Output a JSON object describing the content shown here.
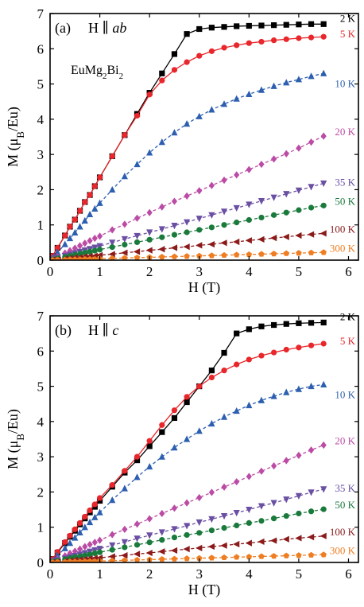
{
  "chart_data": [
    {
      "type": "scatter",
      "panel_label": "(a)",
      "field_prefix": "H ∥ ",
      "field_dir": "ab",
      "compound": {
        "base": "EuMg",
        "sub1": "2",
        "mid": "Bi",
        "sub2": "2"
      },
      "xlabel": "H (T)",
      "ylabel": {
        "pre": "M (μ",
        "sub": "B",
        "post": "/Eu)"
      },
      "xlim": [
        0,
        6.2
      ],
      "ylim": [
        0,
        7
      ],
      "xticks": [
        0,
        1,
        2,
        3,
        4,
        5,
        6
      ],
      "yticks": [
        0,
        1,
        2,
        3,
        4,
        5,
        6,
        7
      ],
      "grid": false,
      "legend_placement": "inline labels at right end of curves",
      "series": [
        {
          "name": "2 K",
          "color": "#000000",
          "marker": "square",
          "x": [
            0.05,
            0.15,
            0.3,
            0.4,
            0.5,
            0.6,
            0.7,
            0.8,
            0.9,
            1.0,
            1.25,
            1.5,
            1.75,
            2.0,
            2.25,
            2.5,
            2.75,
            3.0,
            3.25,
            3.5,
            3.75,
            4.0,
            4.25,
            4.5,
            4.75,
            5.0,
            5.25,
            5.5
          ],
          "y": [
            0.12,
            0.35,
            0.7,
            0.95,
            1.15,
            1.4,
            1.65,
            1.85,
            2.1,
            2.35,
            2.95,
            3.55,
            4.15,
            4.75,
            5.3,
            5.85,
            6.42,
            6.56,
            6.6,
            6.62,
            6.64,
            6.65,
            6.66,
            6.67,
            6.68,
            6.69,
            6.7,
            6.7
          ]
        },
        {
          "name": "5 K",
          "color": "#e8262b",
          "marker": "circle",
          "x": [
            0.05,
            0.15,
            0.3,
            0.4,
            0.5,
            0.6,
            0.7,
            0.8,
            0.9,
            1.0,
            1.25,
            1.5,
            1.75,
            2.0,
            2.25,
            2.5,
            2.75,
            3.0,
            3.25,
            3.5,
            3.75,
            4.0,
            4.25,
            4.5,
            4.75,
            5.0,
            5.25,
            5.5
          ],
          "y": [
            0.12,
            0.35,
            0.7,
            0.95,
            1.15,
            1.4,
            1.65,
            1.85,
            2.1,
            2.35,
            2.95,
            3.55,
            4.1,
            4.7,
            5.1,
            5.4,
            5.62,
            5.8,
            5.93,
            6.03,
            6.1,
            6.16,
            6.2,
            6.24,
            6.27,
            6.3,
            6.32,
            6.34
          ]
        },
        {
          "name": "10 K",
          "color": "#2d5fb0",
          "marker": "triangle-up",
          "x": [
            0.05,
            0.15,
            0.3,
            0.4,
            0.5,
            0.6,
            0.7,
            0.8,
            0.9,
            1.0,
            1.25,
            1.5,
            1.75,
            2.0,
            2.25,
            2.5,
            2.75,
            3.0,
            3.25,
            3.5,
            3.75,
            4.0,
            4.25,
            4.5,
            4.75,
            5.0,
            5.25,
            5.5
          ],
          "y": [
            0.08,
            0.22,
            0.45,
            0.62,
            0.78,
            0.95,
            1.12,
            1.3,
            1.46,
            1.62,
            2.0,
            2.38,
            2.72,
            3.05,
            3.35,
            3.62,
            3.87,
            4.08,
            4.27,
            4.43,
            4.58,
            4.71,
            4.83,
            4.94,
            5.04,
            5.13,
            5.22,
            5.3
          ]
        },
        {
          "name": "20 K",
          "color": "#bb4ba5",
          "marker": "diamond",
          "x": [
            0.05,
            0.15,
            0.3,
            0.4,
            0.5,
            0.6,
            0.7,
            0.8,
            0.9,
            1.0,
            1.25,
            1.5,
            1.75,
            2.0,
            2.25,
            2.5,
            2.75,
            3.0,
            3.25,
            3.5,
            3.75,
            4.0,
            4.25,
            4.5,
            4.75,
            5.0,
            5.25,
            5.5
          ],
          "y": [
            0.04,
            0.1,
            0.2,
            0.27,
            0.34,
            0.41,
            0.48,
            0.55,
            0.62,
            0.68,
            0.86,
            1.02,
            1.19,
            1.35,
            1.51,
            1.67,
            1.82,
            1.97,
            2.12,
            2.27,
            2.42,
            2.57,
            2.72,
            2.87,
            3.02,
            3.18,
            3.35,
            3.52
          ]
        },
        {
          "name": "35 K",
          "color": "#6a4fa3",
          "marker": "triangle-down",
          "x": [
            0.05,
            0.15,
            0.3,
            0.4,
            0.5,
            0.6,
            0.7,
            0.8,
            0.9,
            1.0,
            1.25,
            1.5,
            1.75,
            2.0,
            2.25,
            2.5,
            2.75,
            3.0,
            3.25,
            3.5,
            3.75,
            4.0,
            4.25,
            4.5,
            4.75,
            5.0,
            5.25,
            5.5
          ],
          "y": [
            0.02,
            0.06,
            0.12,
            0.16,
            0.2,
            0.24,
            0.28,
            0.32,
            0.36,
            0.4,
            0.5,
            0.6,
            0.69,
            0.79,
            0.88,
            0.98,
            1.08,
            1.18,
            1.28,
            1.38,
            1.48,
            1.58,
            1.68,
            1.78,
            1.88,
            1.98,
            2.08,
            2.18
          ]
        },
        {
          "name": "50 K",
          "color": "#1a7a3c",
          "marker": "circle",
          "x": [
            0.05,
            0.15,
            0.3,
            0.4,
            0.5,
            0.6,
            0.7,
            0.8,
            0.9,
            1.0,
            1.25,
            1.5,
            1.75,
            2.0,
            2.25,
            2.5,
            2.75,
            3.0,
            3.25,
            3.5,
            3.75,
            4.0,
            4.25,
            4.5,
            4.75,
            5.0,
            5.25,
            5.5
          ],
          "y": [
            0.02,
            0.05,
            0.09,
            0.12,
            0.15,
            0.18,
            0.21,
            0.24,
            0.27,
            0.3,
            0.37,
            0.44,
            0.51,
            0.58,
            0.65,
            0.72,
            0.79,
            0.86,
            0.93,
            1.0,
            1.07,
            1.14,
            1.21,
            1.28,
            1.35,
            1.42,
            1.49,
            1.55
          ]
        },
        {
          "name": "100 K",
          "color": "#8b1a1a",
          "marker": "triangle-left",
          "x": [
            0.05,
            0.15,
            0.3,
            0.4,
            0.5,
            0.6,
            0.7,
            0.8,
            0.9,
            1.0,
            1.25,
            1.5,
            1.75,
            2.0,
            2.25,
            2.5,
            2.75,
            3.0,
            3.25,
            3.5,
            3.75,
            4.0,
            4.25,
            4.5,
            4.75,
            5.0,
            5.25,
            5.5
          ],
          "y": [
            0.01,
            0.02,
            0.04,
            0.06,
            0.07,
            0.08,
            0.1,
            0.11,
            0.12,
            0.14,
            0.17,
            0.21,
            0.24,
            0.28,
            0.31,
            0.35,
            0.38,
            0.42,
            0.45,
            0.49,
            0.52,
            0.56,
            0.59,
            0.63,
            0.66,
            0.7,
            0.73,
            0.76
          ]
        },
        {
          "name": "300 K",
          "color": "#ef7d22",
          "marker": "pentagon",
          "x": [
            0.05,
            0.15,
            0.3,
            0.4,
            0.5,
            0.6,
            0.7,
            0.8,
            0.9,
            1.0,
            1.25,
            1.5,
            1.75,
            2.0,
            2.25,
            2.5,
            2.75,
            3.0,
            3.25,
            3.5,
            3.75,
            4.0,
            4.25,
            4.5,
            4.75,
            5.0,
            5.25,
            5.5
          ],
          "y": [
            0.0,
            0.01,
            0.01,
            0.02,
            0.02,
            0.02,
            0.03,
            0.03,
            0.03,
            0.04,
            0.05,
            0.06,
            0.07,
            0.08,
            0.09,
            0.1,
            0.11,
            0.12,
            0.13,
            0.14,
            0.15,
            0.16,
            0.17,
            0.18,
            0.19,
            0.2,
            0.21,
            0.22
          ]
        }
      ]
    },
    {
      "type": "scatter",
      "panel_label": "(b)",
      "field_prefix": "H ∥ ",
      "field_dir": "c",
      "xlabel": "H (T)",
      "ylabel": {
        "pre": "M (μ",
        "sub": "B",
        "post": "/Eu)"
      },
      "xlim": [
        0,
        6.2
      ],
      "ylim": [
        0,
        7
      ],
      "xticks": [
        0,
        1,
        2,
        3,
        4,
        5,
        6
      ],
      "yticks": [
        0,
        1,
        2,
        3,
        4,
        5,
        6,
        7
      ],
      "grid": false,
      "legend_placement": "inline labels at right end of curves",
      "series": [
        {
          "name": "2 K",
          "color": "#000000",
          "marker": "square",
          "x": [
            0.05,
            0.15,
            0.3,
            0.4,
            0.5,
            0.6,
            0.7,
            0.8,
            0.9,
            1.0,
            1.25,
            1.5,
            1.75,
            2.0,
            2.25,
            2.5,
            2.75,
            3.0,
            3.25,
            3.5,
            3.75,
            4.0,
            4.25,
            4.5,
            4.75,
            5.0,
            5.25,
            5.5
          ],
          "y": [
            0.1,
            0.28,
            0.55,
            0.73,
            0.9,
            1.08,
            1.25,
            1.42,
            1.58,
            1.75,
            2.15,
            2.55,
            2.9,
            3.3,
            3.7,
            4.1,
            4.55,
            5.0,
            5.45,
            5.95,
            6.5,
            6.62,
            6.7,
            6.74,
            6.77,
            6.79,
            6.8,
            6.81
          ]
        },
        {
          "name": "5 K",
          "color": "#e8262b",
          "marker": "circle",
          "x": [
            0.05,
            0.15,
            0.3,
            0.4,
            0.5,
            0.6,
            0.7,
            0.8,
            0.9,
            1.0,
            1.25,
            1.5,
            1.75,
            2.0,
            2.25,
            2.5,
            2.75,
            3.0,
            3.25,
            3.5,
            3.75,
            4.0,
            4.25,
            4.5,
            4.75,
            5.0,
            5.25,
            5.5
          ],
          "y": [
            0.1,
            0.3,
            0.58,
            0.76,
            0.94,
            1.12,
            1.3,
            1.48,
            1.65,
            1.83,
            2.2,
            2.6,
            3.0,
            3.45,
            3.9,
            4.32,
            4.7,
            5.0,
            5.25,
            5.45,
            5.62,
            5.76,
            5.87,
            5.96,
            6.04,
            6.1,
            6.16,
            6.21
          ]
        },
        {
          "name": "10 K",
          "color": "#2d5fb0",
          "marker": "triangle-up",
          "x": [
            0.05,
            0.15,
            0.3,
            0.4,
            0.5,
            0.6,
            0.7,
            0.8,
            0.9,
            1.0,
            1.25,
            1.5,
            1.75,
            2.0,
            2.25,
            2.5,
            2.75,
            3.0,
            3.25,
            3.5,
            3.75,
            4.0,
            4.25,
            4.5,
            4.75,
            5.0,
            5.25,
            5.5
          ],
          "y": [
            0.07,
            0.2,
            0.4,
            0.55,
            0.7,
            0.85,
            1.0,
            1.14,
            1.28,
            1.42,
            1.77,
            2.1,
            2.42,
            2.72,
            3.0,
            3.26,
            3.5,
            3.73,
            3.94,
            4.13,
            4.3,
            4.46,
            4.6,
            4.72,
            4.83,
            4.92,
            5.0,
            5.05
          ]
        },
        {
          "name": "20 K",
          "color": "#bb4ba5",
          "marker": "diamond",
          "x": [
            0.05,
            0.15,
            0.3,
            0.4,
            0.5,
            0.6,
            0.7,
            0.8,
            0.9,
            1.0,
            1.25,
            1.5,
            1.75,
            2.0,
            2.25,
            2.5,
            2.75,
            3.0,
            3.25,
            3.5,
            3.75,
            4.0,
            4.25,
            4.5,
            4.75,
            5.0,
            5.25,
            5.5
          ],
          "y": [
            0.04,
            0.1,
            0.19,
            0.26,
            0.32,
            0.38,
            0.45,
            0.51,
            0.57,
            0.63,
            0.79,
            0.94,
            1.09,
            1.24,
            1.39,
            1.54,
            1.69,
            1.84,
            1.99,
            2.14,
            2.29,
            2.44,
            2.59,
            2.74,
            2.89,
            3.04,
            3.19,
            3.33
          ]
        },
        {
          "name": "35 K",
          "color": "#6a4fa3",
          "marker": "triangle-down",
          "x": [
            0.05,
            0.15,
            0.3,
            0.4,
            0.5,
            0.6,
            0.7,
            0.8,
            0.9,
            1.0,
            1.25,
            1.5,
            1.75,
            2.0,
            2.25,
            2.5,
            2.75,
            3.0,
            3.25,
            3.5,
            3.75,
            4.0,
            4.25,
            4.5,
            4.75,
            5.0,
            5.25,
            5.5
          ],
          "y": [
            0.02,
            0.06,
            0.11,
            0.15,
            0.19,
            0.23,
            0.27,
            0.31,
            0.35,
            0.39,
            0.49,
            0.58,
            0.68,
            0.77,
            0.86,
            0.95,
            1.04,
            1.14,
            1.23,
            1.32,
            1.41,
            1.5,
            1.6,
            1.69,
            1.79,
            1.89,
            1.99,
            2.08
          ]
        },
        {
          "name": "50 K",
          "color": "#1a7a3c",
          "marker": "circle",
          "x": [
            0.05,
            0.15,
            0.3,
            0.4,
            0.5,
            0.6,
            0.7,
            0.8,
            0.9,
            1.0,
            1.25,
            1.5,
            1.75,
            2.0,
            2.25,
            2.5,
            2.75,
            3.0,
            3.25,
            3.5,
            3.75,
            4.0,
            4.25,
            4.5,
            4.75,
            5.0,
            5.25,
            5.5
          ],
          "y": [
            0.02,
            0.05,
            0.09,
            0.12,
            0.15,
            0.17,
            0.2,
            0.23,
            0.26,
            0.29,
            0.36,
            0.43,
            0.5,
            0.57,
            0.64,
            0.71,
            0.78,
            0.84,
            0.91,
            0.98,
            1.05,
            1.12,
            1.18,
            1.25,
            1.32,
            1.39,
            1.45,
            1.51
          ]
        },
        {
          "name": "100 K",
          "color": "#8b1a1a",
          "marker": "triangle-left",
          "x": [
            0.05,
            0.15,
            0.3,
            0.4,
            0.5,
            0.6,
            0.7,
            0.8,
            0.9,
            1.0,
            1.25,
            1.5,
            1.75,
            2.0,
            2.25,
            2.5,
            2.75,
            3.0,
            3.25,
            3.5,
            3.75,
            4.0,
            4.25,
            4.5,
            4.75,
            5.0,
            5.25,
            5.5
          ],
          "y": [
            0.01,
            0.02,
            0.04,
            0.05,
            0.07,
            0.08,
            0.09,
            0.11,
            0.12,
            0.13,
            0.17,
            0.2,
            0.24,
            0.27,
            0.31,
            0.34,
            0.38,
            0.41,
            0.45,
            0.48,
            0.52,
            0.55,
            0.59,
            0.62,
            0.66,
            0.69,
            0.72,
            0.75
          ]
        },
        {
          "name": "300 K",
          "color": "#ef7d22",
          "marker": "pentagon",
          "x": [
            0.05,
            0.15,
            0.3,
            0.4,
            0.5,
            0.6,
            0.7,
            0.8,
            0.9,
            1.0,
            1.25,
            1.5,
            1.75,
            2.0,
            2.25,
            2.5,
            2.75,
            3.0,
            3.25,
            3.5,
            3.75,
            4.0,
            4.25,
            4.5,
            4.75,
            5.0,
            5.25,
            5.5
          ],
          "y": [
            0.0,
            0.01,
            0.01,
            0.02,
            0.02,
            0.02,
            0.03,
            0.03,
            0.03,
            0.04,
            0.05,
            0.06,
            0.07,
            0.08,
            0.09,
            0.1,
            0.11,
            0.12,
            0.13,
            0.14,
            0.15,
            0.16,
            0.17,
            0.18,
            0.19,
            0.2,
            0.21,
            0.22
          ]
        }
      ]
    }
  ]
}
